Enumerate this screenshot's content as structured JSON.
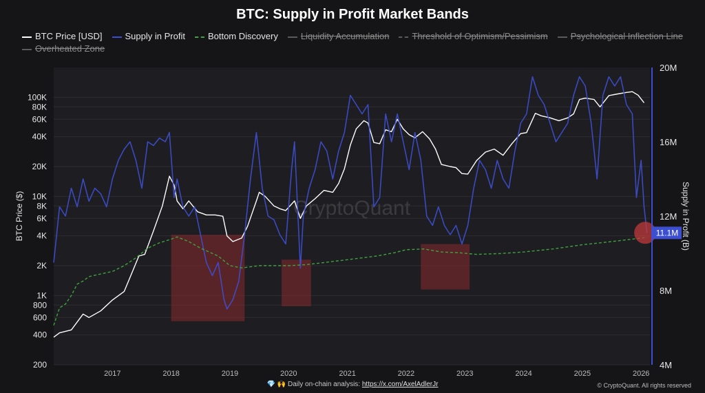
{
  "chart_data": {
    "type": "line",
    "title": "BTC: Supply in Profit Market Bands",
    "left_axis": {
      "label": "BTC Price ($)",
      "scale": "log",
      "range": [
        200,
        200000
      ],
      "ticks": [
        200,
        400,
        600,
        800,
        1000,
        2000,
        4000,
        6000,
        8000,
        10000,
        20000,
        40000,
        60000,
        80000,
        100000
      ],
      "tick_labels": [
        "200",
        "400",
        "600",
        "800",
        "1K",
        "2K",
        "4K",
        "6K",
        "8K",
        "10K",
        "20K",
        "40K",
        "60K",
        "80K",
        "100K"
      ]
    },
    "right_axis": {
      "label": "Supply in Profit (B)",
      "scale": "linear",
      "range": [
        4000000,
        20000000
      ],
      "ticks": [
        4000000,
        8000000,
        12000000,
        16000000,
        20000000
      ],
      "tick_labels": [
        "4M",
        "8M",
        "12M",
        "16M",
        "20M"
      ],
      "current_value_label": "11.1M",
      "current_value": 11100000
    },
    "x_axis": {
      "range": [
        2016.0,
        2026.15
      ],
      "ticks": [
        2017,
        2018,
        2019,
        2020,
        2021,
        2022,
        2023,
        2024,
        2025,
        2026
      ],
      "tick_labels": [
        "2017",
        "2018",
        "2019",
        "2020",
        "2021",
        "2022",
        "2023",
        "2024",
        "2025",
        "2026"
      ]
    },
    "legend_position": "top",
    "grid": true,
    "series": [
      {
        "name": "BTC Price [USD]",
        "color": "#ffffff",
        "axis": "left",
        "visible": true,
        "x": [
          2016.0,
          2016.1,
          2016.3,
          2016.5,
          2016.6,
          2016.8,
          2017.0,
          2017.2,
          2017.35,
          2017.45,
          2017.55,
          2017.7,
          2017.85,
          2017.97,
          2018.05,
          2018.1,
          2018.2,
          2018.3,
          2018.45,
          2018.6,
          2018.75,
          2018.88,
          2018.95,
          2019.05,
          2019.2,
          2019.3,
          2019.45,
          2019.5,
          2019.6,
          2019.75,
          2019.85,
          2019.95,
          2020.1,
          2020.2,
          2020.3,
          2020.45,
          2020.6,
          2020.75,
          2020.85,
          2020.95,
          2021.05,
          2021.15,
          2021.28,
          2021.35,
          2021.45,
          2021.55,
          2021.65,
          2021.75,
          2021.85,
          2021.95,
          2022.05,
          2022.15,
          2022.28,
          2022.4,
          2022.5,
          2022.6,
          2022.75,
          2022.85,
          2022.95,
          2023.05,
          2023.2,
          2023.35,
          2023.5,
          2023.65,
          2023.8,
          2023.95,
          2024.05,
          2024.2,
          2024.3,
          2024.45,
          2024.6,
          2024.75,
          2024.85,
          2024.95,
          2025.05,
          2025.2,
          2025.3,
          2025.45,
          2025.6,
          2025.75,
          2025.85,
          2025.95,
          2026.05
        ],
        "values": [
          380,
          420,
          450,
          650,
          600,
          700,
          900,
          1100,
          1800,
          2500,
          2600,
          4500,
          8000,
          16000,
          13000,
          9000,
          7500,
          9000,
          7000,
          6500,
          6500,
          6300,
          4000,
          3500,
          3800,
          5000,
          9000,
          11000,
          10000,
          8000,
          7500,
          7200,
          9000,
          6000,
          8000,
          9500,
          11500,
          11000,
          13500,
          19000,
          33000,
          48000,
          58000,
          55000,
          35000,
          34000,
          47000,
          45000,
          60000,
          48000,
          42000,
          39000,
          45000,
          38000,
          30000,
          21000,
          20000,
          19500,
          17000,
          16800,
          23000,
          28000,
          30000,
          26000,
          34000,
          43000,
          44000,
          69000,
          65000,
          62000,
          58000,
          62000,
          68000,
          95000,
          98000,
          95000,
          80000,
          104000,
          108000,
          112000,
          114000,
          105000,
          88000
        ]
      },
      {
        "name": "Supply in Profit",
        "color": "#3d4fd1",
        "axis": "right",
        "visible": true,
        "x": [
          2016.0,
          2016.05,
          2016.1,
          2016.2,
          2016.3,
          2016.4,
          2016.5,
          2016.6,
          2016.7,
          2016.8,
          2016.9,
          2017.0,
          2017.1,
          2017.2,
          2017.3,
          2017.4,
          2017.5,
          2017.6,
          2017.7,
          2017.8,
          2017.9,
          2017.97,
          2018.05,
          2018.1,
          2018.2,
          2018.3,
          2018.4,
          2018.5,
          2018.6,
          2018.7,
          2018.8,
          2018.9,
          2018.95,
          2019.05,
          2019.15,
          2019.25,
          2019.35,
          2019.45,
          2019.55,
          2019.65,
          2019.75,
          2019.85,
          2019.95,
          2020.05,
          2020.1,
          2020.2,
          2020.25,
          2020.35,
          2020.45,
          2020.55,
          2020.65,
          2020.75,
          2020.85,
          2020.95,
          2021.05,
          2021.15,
          2021.25,
          2021.35,
          2021.45,
          2021.55,
          2021.65,
          2021.75,
          2021.85,
          2021.95,
          2022.05,
          2022.15,
          2022.25,
          2022.35,
          2022.45,
          2022.55,
          2022.65,
          2022.75,
          2022.85,
          2022.95,
          2023.05,
          2023.15,
          2023.25,
          2023.35,
          2023.45,
          2023.55,
          2023.65,
          2023.75,
          2023.85,
          2023.95,
          2024.05,
          2024.15,
          2024.25,
          2024.35,
          2024.45,
          2024.55,
          2024.65,
          2024.75,
          2024.85,
          2024.95,
          2025.05,
          2025.15,
          2025.25,
          2025.35,
          2025.45,
          2025.55,
          2025.65,
          2025.75,
          2025.85,
          2025.92,
          2026.0,
          2026.05,
          2026.1
        ],
        "values": [
          9500,
          11000,
          12500,
          12000,
          13500,
          12500,
          14000,
          12800,
          13500,
          13200,
          12500,
          14000,
          15000,
          15600,
          16000,
          15000,
          13500,
          16000,
          15800,
          16200,
          16000,
          16500,
          13000,
          14000,
          12500,
          12000,
          12500,
          11000,
          9500,
          8800,
          9500,
          7500,
          7000,
          7500,
          8500,
          11000,
          14000,
          16500,
          13500,
          12000,
          11800,
          11000,
          10500,
          14500,
          16000,
          9200,
          12000,
          13500,
          14500,
          16000,
          15500,
          14000,
          15500,
          16500,
          18500,
          18000,
          17500,
          18000,
          12500,
          13000,
          17500,
          16000,
          17500,
          16000,
          14500,
          16500,
          15000,
          12000,
          11500,
          12500,
          11500,
          11000,
          11500,
          10500,
          11500,
          13500,
          15000,
          14500,
          13500,
          15000,
          14000,
          13500,
          15500,
          17000,
          17500,
          19500,
          18500,
          18000,
          17000,
          16000,
          16500,
          17000,
          18500,
          19500,
          19000,
          17000,
          14000,
          18500,
          19500,
          19000,
          19500,
          18000,
          17500,
          13000,
          15000,
          12500,
          11100
        ]
      },
      {
        "name": "Bottom Discovery",
        "color": "#3fa33f",
        "axis": "left",
        "visible": true,
        "dashed": true,
        "x": [
          2016.0,
          2016.1,
          2016.2,
          2016.3,
          2016.4,
          2016.5,
          2016.6,
          2016.8,
          2017.0,
          2017.2,
          2017.4,
          2017.6,
          2017.8,
          2018.0,
          2018.1,
          2018.3,
          2018.5,
          2018.8,
          2019.0,
          2019.2,
          2019.5,
          2019.8,
          2020.0,
          2020.3,
          2020.6,
          2021.0,
          2021.5,
          2021.8,
          2022.0,
          2022.3,
          2022.6,
          2022.9,
          2023.2,
          2023.6,
          2024.0,
          2024.5,
          2025.0,
          2025.5,
          2026.0,
          2026.1
        ],
        "values": [
          500,
          750,
          820,
          1000,
          1300,
          1400,
          1550,
          1650,
          1750,
          2000,
          2400,
          3000,
          3400,
          3700,
          3900,
          3500,
          3000,
          2500,
          2000,
          1900,
          2000,
          2000,
          2000,
          2050,
          2150,
          2300,
          2500,
          2700,
          2900,
          2950,
          2750,
          2700,
          2600,
          2650,
          2750,
          2950,
          3250,
          3500,
          3800,
          3850
        ]
      },
      {
        "name": "Liquidity Accumulation",
        "color": "#888888",
        "visible": false
      },
      {
        "name": "Threshold of Optimism/Pessimism",
        "color": "#888888",
        "visible": false,
        "dashed": true
      },
      {
        "name": "Psychological Inflection Line",
        "color": "#888888",
        "visible": false
      },
      {
        "name": "Overheated Zone",
        "color": "#888888",
        "visible": false
      }
    ],
    "bottom_zones": [
      {
        "x0": 2018.0,
        "x1": 2019.25,
        "price_low": 550,
        "price_high": 4100
      },
      {
        "x0": 2019.88,
        "x1": 2020.38,
        "price_low": 780,
        "price_high": 2300
      },
      {
        "x0": 2022.25,
        "x1": 2023.08,
        "price_low": 1150,
        "price_high": 3300
      }
    ],
    "current_marker": {
      "x": 2026.07,
      "value": 11100000
    }
  },
  "legend": [
    {
      "label": "BTC Price [USD]",
      "color": "#ffffff",
      "style": "solid",
      "enabled": true
    },
    {
      "label": "Supply in Profit",
      "color": "#3d4fd1",
      "style": "solid",
      "enabled": true
    },
    {
      "label": "Bottom Discovery",
      "color": "#3fa33f",
      "style": "dashed",
      "enabled": true
    },
    {
      "label": "Liquidity Accumulation",
      "color": "#8a8a8a",
      "style": "solid",
      "enabled": false
    },
    {
      "label": "Threshold of Optimism/Pessimism",
      "color": "#8a8a8a",
      "style": "dashed",
      "enabled": false
    },
    {
      "label": "Psychological Inflection Line",
      "color": "#8a8a8a",
      "style": "solid",
      "enabled": false
    },
    {
      "label": "Overheated Zone",
      "color": "#8a8a8a",
      "style": "solid",
      "enabled": false
    }
  ],
  "footer": {
    "icons": "💎 🙌",
    "note": "Daily on-chain analysis:",
    "link": "https://x.com/AxelAdlerJr",
    "copyright": "© CryptoQuant. All rights reserved"
  },
  "watermark": "CryptoQuant",
  "colors": {
    "background": "#151518",
    "plot_area": "#1e1e22",
    "zone_fill": "#8b2a2e",
    "marker": "#c0393b",
    "right_axis_line": "#3d4fd1"
  }
}
